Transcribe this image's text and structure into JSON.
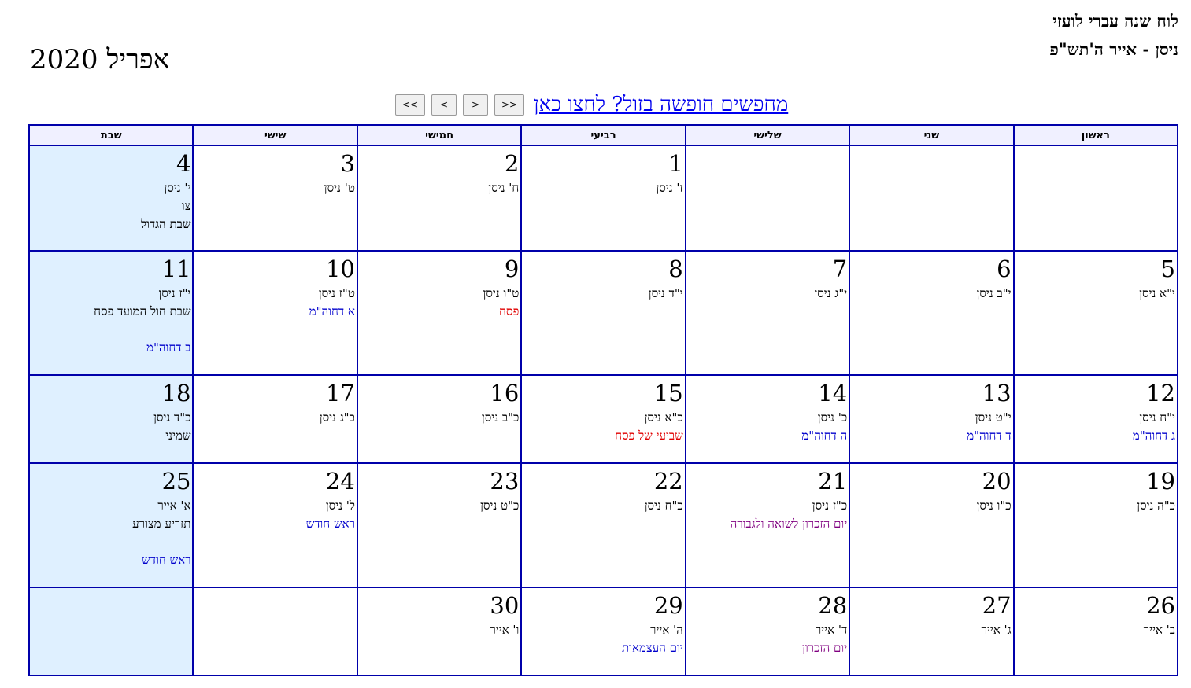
{
  "header": {
    "site_title": "לוח שנה עברי לועזי",
    "hebrew_range": "ניסן - אייר ה'תש\"פ",
    "month_title": "אפריל 2020"
  },
  "nav": {
    "buttons": [
      "<<",
      "<",
      ">",
      ">>"
    ],
    "promo_link": "מחפשים חופשה בזול? לחצו כאן"
  },
  "colors": {
    "border": "#0000aa",
    "header_bg": "#f0f0ff",
    "shabbat_bg": "#dff0ff",
    "holiday_red": "#e00000",
    "event_blue": "#0000cc",
    "memorial_purple": "#800080"
  },
  "weekdays": [
    "ראשון",
    "שני",
    "שלישי",
    "רביעי",
    "חמישי",
    "שישי",
    "שבת"
  ],
  "weeks": [
    [
      null,
      null,
      null,
      {
        "day": "1",
        "lines": [
          {
            "text": "ז' ניסן",
            "color": "black"
          }
        ]
      },
      {
        "day": "2",
        "lines": [
          {
            "text": "ח' ניסן",
            "color": "black"
          }
        ]
      },
      {
        "day": "3",
        "lines": [
          {
            "text": "ט' ניסן",
            "color": "black"
          }
        ]
      },
      {
        "day": "4",
        "lines": [
          {
            "text": "י' ניסן",
            "color": "black"
          },
          {
            "text": "צו",
            "color": "black"
          },
          {
            "text": "שבת הגדול",
            "color": "black"
          }
        ]
      }
    ],
    [
      {
        "day": "5",
        "lines": [
          {
            "text": "י\"א ניסן",
            "color": "black"
          }
        ]
      },
      {
        "day": "6",
        "lines": [
          {
            "text": "י\"ב ניסן",
            "color": "black"
          }
        ]
      },
      {
        "day": "7",
        "lines": [
          {
            "text": "י\"ג ניסן",
            "color": "black"
          }
        ]
      },
      {
        "day": "8",
        "lines": [
          {
            "text": "י\"ד ניסן",
            "color": "black"
          }
        ]
      },
      {
        "day": "9",
        "lines": [
          {
            "text": "ט\"ו ניסן",
            "color": "black"
          },
          {
            "text": "פסח",
            "color": "red"
          }
        ]
      },
      {
        "day": "10",
        "lines": [
          {
            "text": "ט\"ז ניסן",
            "color": "black"
          },
          {
            "text": "א דחוה\"מ",
            "color": "blue"
          }
        ]
      },
      {
        "day": "11",
        "lines": [
          {
            "text": "י\"ז ניסן",
            "color": "black"
          },
          {
            "text": "שבת חול המועד פסח",
            "color": "black"
          },
          {
            "text": "ב דחוה\"מ",
            "color": "blue",
            "gap": true
          }
        ]
      }
    ],
    [
      {
        "day": "12",
        "lines": [
          {
            "text": "י\"ח ניסן",
            "color": "black"
          },
          {
            "text": "ג דחוה\"מ",
            "color": "blue"
          }
        ]
      },
      {
        "day": "13",
        "lines": [
          {
            "text": "י\"ט ניסן",
            "color": "black"
          },
          {
            "text": "ד דחוה\"מ",
            "color": "blue"
          }
        ]
      },
      {
        "day": "14",
        "lines": [
          {
            "text": "כ' ניסן",
            "color": "black"
          },
          {
            "text": "ה דחוה\"מ",
            "color": "blue"
          }
        ]
      },
      {
        "day": "15",
        "lines": [
          {
            "text": "כ\"א ניסן",
            "color": "black"
          },
          {
            "text": "שביעי של פסח",
            "color": "red"
          }
        ]
      },
      {
        "day": "16",
        "lines": [
          {
            "text": "כ\"ב ניסן",
            "color": "black"
          }
        ]
      },
      {
        "day": "17",
        "lines": [
          {
            "text": "כ\"ג ניסן",
            "color": "black"
          }
        ]
      },
      {
        "day": "18",
        "lines": [
          {
            "text": "כ\"ד ניסן",
            "color": "black"
          },
          {
            "text": "שמיני",
            "color": "black"
          }
        ]
      }
    ],
    [
      {
        "day": "19",
        "lines": [
          {
            "text": "כ\"ה ניסן",
            "color": "black"
          }
        ]
      },
      {
        "day": "20",
        "lines": [
          {
            "text": "כ\"ו ניסן",
            "color": "black"
          }
        ]
      },
      {
        "day": "21",
        "lines": [
          {
            "text": "כ\"ז ניסן",
            "color": "black"
          },
          {
            "text": "יום הזכרון לשואה ולגבורה",
            "color": "purple"
          }
        ]
      },
      {
        "day": "22",
        "lines": [
          {
            "text": "כ\"ח ניסן",
            "color": "black"
          }
        ]
      },
      {
        "day": "23",
        "lines": [
          {
            "text": "כ\"ט ניסן",
            "color": "black"
          }
        ]
      },
      {
        "day": "24",
        "lines": [
          {
            "text": "ל' ניסן",
            "color": "black"
          },
          {
            "text": "ראש חודש",
            "color": "blue"
          }
        ]
      },
      {
        "day": "25",
        "lines": [
          {
            "text": "א' אייר",
            "color": "black"
          },
          {
            "text": "תזריע מצורע",
            "color": "black"
          },
          {
            "text": "ראש חודש",
            "color": "blue",
            "gap": true
          }
        ]
      }
    ],
    [
      {
        "day": "26",
        "lines": [
          {
            "text": "ב' אייר",
            "color": "black"
          }
        ]
      },
      {
        "day": "27",
        "lines": [
          {
            "text": "ג' אייר",
            "color": "black"
          }
        ]
      },
      {
        "day": "28",
        "lines": [
          {
            "text": "ד' אייר",
            "color": "black"
          },
          {
            "text": "יום הזכרון",
            "color": "purple"
          }
        ]
      },
      {
        "day": "29",
        "lines": [
          {
            "text": "ה' אייר",
            "color": "black"
          },
          {
            "text": "יום העצמאות",
            "color": "blue"
          }
        ]
      },
      {
        "day": "30",
        "lines": [
          {
            "text": "ו' אייר",
            "color": "black"
          }
        ]
      },
      null,
      null
    ]
  ]
}
